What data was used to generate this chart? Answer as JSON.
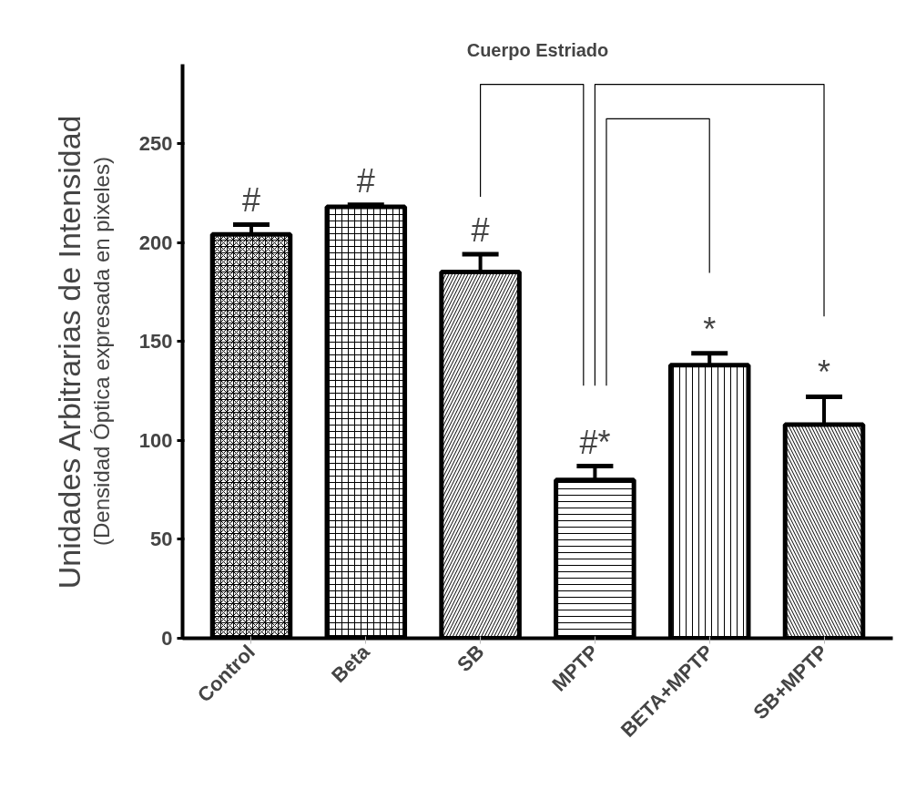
{
  "chart_data": {
    "type": "bar",
    "title": "Cuerpo Estriado",
    "ylabel": "Unidades Arbitrarias de Intensidad",
    "categories": [
      "Control",
      "Beta",
      "SB",
      "MPTP",
      "BETA+MPTP",
      "SB+MPTP"
    ],
    "values": [
      204,
      218,
      185,
      80,
      138,
      108
    ],
    "errors": [
      5,
      1,
      9,
      7,
      6,
      14
    ],
    "color": "#000000",
    "ylim": [
      0,
      290
    ],
    "yticks": [
      0,
      50,
      100,
      150,
      200,
      250
    ],
    "grid": false,
    "annotations": [
      "(Densidad Óptica expresada en pixeles)",
      {
        "text": "#",
        "x": "Control",
        "y": 209
      },
      {
        "text": "#",
        "x": "Beta",
        "y": 219
      },
      {
        "text": "#",
        "x": "SB",
        "y": 194
      },
      {
        "text": "#*",
        "x": "MPTP",
        "y": 87
      },
      {
        "text": "*",
        "x": "BETA+MPTP",
        "y": 144
      },
      {
        "text": "*",
        "x": "SB+MPTP",
        "y": 122
      }
    ]
  }
}
